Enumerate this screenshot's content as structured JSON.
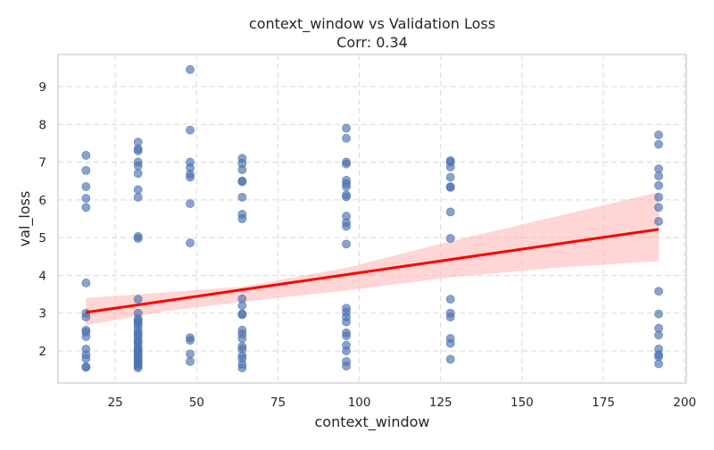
{
  "chart_data": {
    "type": "scatter",
    "title": "context_window vs Validation Loss",
    "subtitle": "Corr: 0.34",
    "xlabel": "context_window",
    "ylabel": "val_loss",
    "xlim": [
      7.4,
      200.5
    ],
    "ylim": [
      1.15,
      9.85
    ],
    "xticks": [
      25,
      50,
      75,
      100,
      125,
      150,
      175,
      200
    ],
    "yticks": [
      2,
      3,
      4,
      5,
      6,
      7,
      8,
      9
    ],
    "grid": true,
    "colors": {
      "points": "#4c72b0",
      "regression_line": "#ff0000",
      "ci_band": "#ffb3b3"
    },
    "groups": [
      {
        "x": 16,
        "y": [
          7.18,
          6.78,
          6.35,
          6.04,
          5.8,
          3.8,
          3.0,
          2.9,
          2.55,
          2.5,
          2.38,
          2.05,
          1.9,
          1.8,
          1.58,
          1.57
        ]
      },
      {
        "x": 32,
        "y": [
          7.53,
          7.35,
          7.3,
          7.0,
          6.9,
          6.7,
          6.27,
          6.07,
          5.03,
          4.98,
          3.37,
          3.0,
          2.85,
          2.8,
          2.75,
          2.7,
          2.6,
          2.5,
          2.45,
          2.4,
          2.3,
          2.25,
          2.2,
          2.1,
          2.05,
          2.0,
          1.95,
          1.9,
          1.85,
          1.8,
          1.75,
          1.7,
          1.65,
          1.6,
          1.55
        ]
      },
      {
        "x": 48,
        "y": [
          9.45,
          7.85,
          7.0,
          6.85,
          6.68,
          6.6,
          5.9,
          4.86,
          2.35,
          2.28,
          1.92,
          1.72
        ]
      },
      {
        "x": 64,
        "y": [
          7.1,
          6.97,
          6.8,
          6.5,
          6.48,
          6.07,
          5.62,
          5.5,
          3.38,
          3.2,
          2.98,
          2.96,
          2.55,
          2.45,
          2.33,
          2.12,
          2.05,
          1.88,
          1.8,
          1.65,
          1.55
        ]
      },
      {
        "x": 96,
        "y": [
          7.9,
          7.63,
          7.0,
          6.95,
          6.52,
          6.43,
          6.35,
          6.13,
          6.08,
          5.57,
          5.4,
          5.3,
          4.83,
          3.13,
          3.02,
          2.9,
          2.77,
          2.48,
          2.4,
          2.15,
          2.0,
          1.72,
          1.6
        ]
      },
      {
        "x": 128,
        "y": [
          7.04,
          7.0,
          6.87,
          6.6,
          6.35,
          6.33,
          5.68,
          4.98,
          3.37,
          3.0,
          2.9,
          2.33,
          2.2,
          1.78
        ]
      },
      {
        "x": 192,
        "y": [
          7.72,
          7.47,
          6.82,
          6.63,
          6.38,
          6.07,
          5.8,
          5.43,
          3.58,
          2.98,
          2.6,
          2.42,
          2.05,
          1.9,
          1.85,
          1.66
        ]
      }
    ],
    "regression": {
      "x": [
        16,
        192
      ],
      "y": [
        3.02,
        5.22
      ]
    },
    "ci_band": {
      "x": [
        16,
        40,
        64,
        96,
        128,
        160,
        192
      ],
      "lower": [
        2.68,
        3.05,
        3.3,
        3.6,
        3.95,
        4.2,
        4.38
      ],
      "upper": [
        3.4,
        3.55,
        3.7,
        4.2,
        4.9,
        5.55,
        6.2
      ]
    }
  }
}
